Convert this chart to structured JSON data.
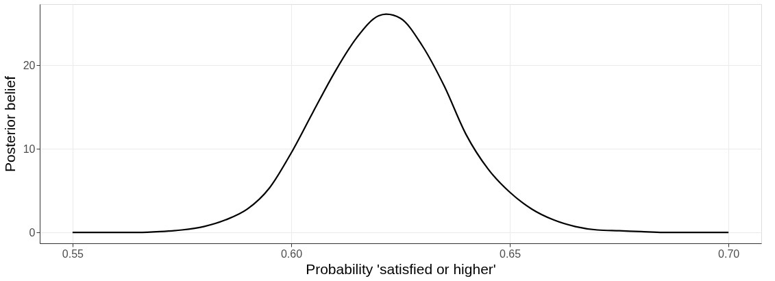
{
  "chart_data": {
    "type": "line",
    "xlabel": "Probability 'satisfied or higher'",
    "ylabel": "Posterior belief",
    "x": [
      0.55,
      0.555,
      0.56,
      0.565,
      0.57,
      0.575,
      0.58,
      0.585,
      0.59,
      0.595,
      0.6,
      0.605,
      0.61,
      0.615,
      0.62,
      0.6217,
      0.625,
      0.63,
      0.635,
      0.64,
      0.645,
      0.65,
      0.655,
      0.66,
      0.665,
      0.67,
      0.675,
      0.68,
      0.685,
      0.69,
      0.695,
      0.7
    ],
    "series": [
      {
        "color": "#000000",
        "values": [
          0,
          0,
          0,
          0,
          0.1,
          0.3,
          0.7,
          1.5,
          2.8,
          5.3,
          9.5,
          14.4,
          19.2,
          23.3,
          25.9,
          26.1,
          25.6,
          22.3,
          17.5,
          11.7,
          7.6,
          4.8,
          2.8,
          1.5,
          0.7,
          0.3,
          0.2,
          0.1,
          0,
          0,
          0,
          0
        ]
      }
    ],
    "xlim": [
      0.5425,
      0.7075
    ],
    "ylim": [
      -1.3,
      27.3
    ],
    "xticks": [
      {
        "value": 0.55,
        "label": "0.55"
      },
      {
        "value": 0.6,
        "label": "0.60"
      },
      {
        "value": 0.65,
        "label": "0.65"
      },
      {
        "value": 0.7,
        "label": "0.70"
      }
    ],
    "yticks": [
      0,
      10,
      20
    ],
    "grid": true,
    "marker": "none",
    "line_style": "solid"
  }
}
